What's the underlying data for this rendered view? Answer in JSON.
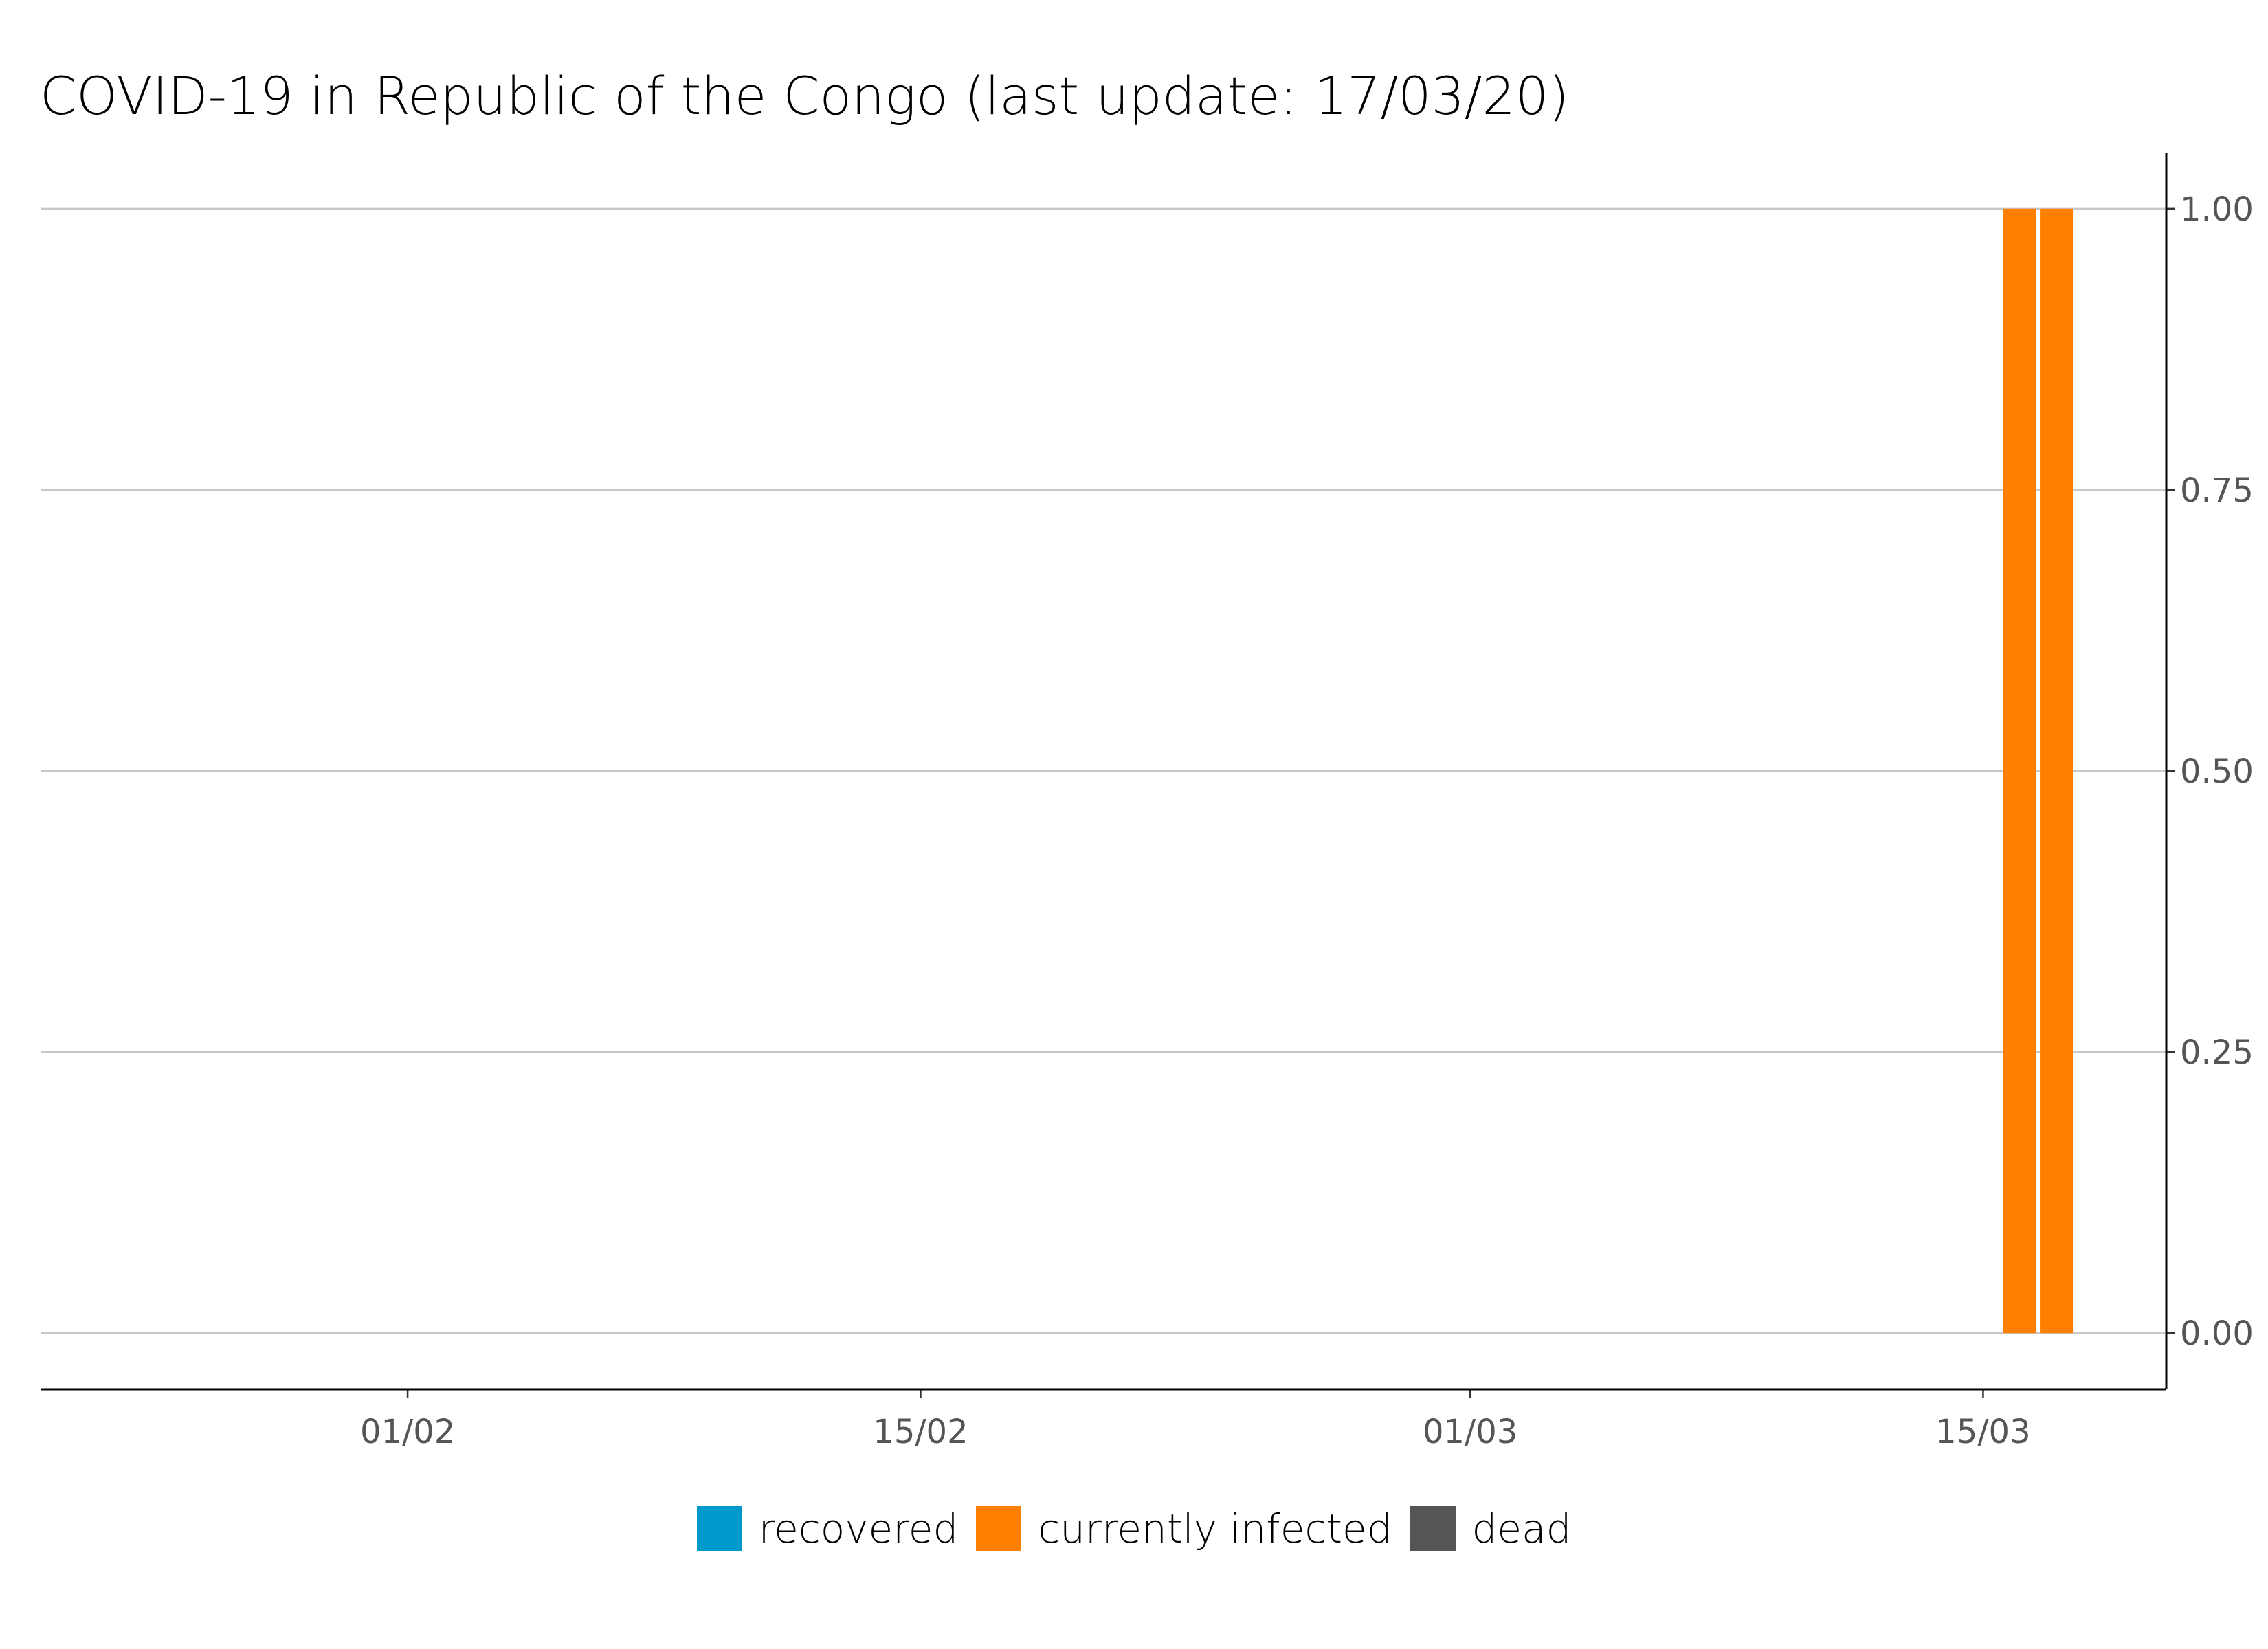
{
  "chart_data": {
    "type": "bar",
    "stacked": true,
    "title": "COVID-19 in Republic of the Congo (last update: 17/03/20)",
    "xlabel": "",
    "ylabel": "",
    "x_range": [
      "2020-01-22",
      "2020-03-20"
    ],
    "x_ticks": [
      {
        "date": "2020-02-01",
        "label": "01/02"
      },
      {
        "date": "2020-02-15",
        "label": "15/02"
      },
      {
        "date": "2020-03-01",
        "label": "01/03"
      },
      {
        "date": "2020-03-15",
        "label": "15/03"
      }
    ],
    "ylim": [
      -0.05,
      1.05
    ],
    "y_ticks": [
      {
        "value": 0,
        "label": "0.00"
      },
      {
        "value": 0.25,
        "label": "0.25"
      },
      {
        "value": 0.5,
        "label": "0.50"
      },
      {
        "value": 0.75,
        "label": "0.75"
      },
      {
        "value": 1,
        "label": "1.00"
      }
    ],
    "y_axis_side": "right",
    "grid": "horizontal",
    "legend_position": "bottom",
    "dates": [
      "2020-03-16",
      "2020-03-17"
    ],
    "series": [
      {
        "name": "recovered",
        "color": "#0099cc",
        "values": [
          0,
          0
        ]
      },
      {
        "name": "currently infected",
        "color": "#ff8000",
        "values": [
          1,
          1
        ]
      },
      {
        "name": "dead",
        "color": "#555555",
        "values": [
          0,
          0
        ]
      }
    ]
  }
}
